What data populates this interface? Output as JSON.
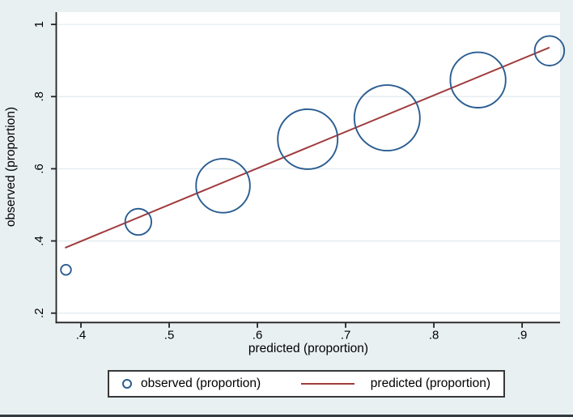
{
  "figure": {
    "background_color": "#e9f0f2",
    "plot_background": "#ffffff",
    "grid_color": "#e4edf0",
    "axis_color": "#232323",
    "text_color": "#000000",
    "navy": "#2a5d91",
    "maroon": "#a03c3e",
    "legend_border_color": "#383838",
    "bottom_border_color": "#333b41"
  },
  "chart_data": {
    "type": "scatter",
    "title": "",
    "xlabel": "predicted (proportion)",
    "ylabel": "observed (proportion)",
    "x_ticks": [
      ".4",
      ".5",
      ".6",
      ".7",
      ".8",
      ".9"
    ],
    "x_tick_values": [
      0.4,
      0.5,
      0.6,
      0.7,
      0.8,
      0.9
    ],
    "y_ticks": [
      ".2",
      ".4",
      ".6",
      ".8",
      "1"
    ],
    "y_tick_values": [
      0.2,
      0.4,
      0.6,
      0.8,
      1.0
    ],
    "xlim": [
      0.372,
      0.943
    ],
    "ylim": [
      0.174,
      1.034
    ],
    "grid": "horizontal",
    "legend_position": "bottom",
    "series": [
      {
        "name": "predicted (proportion)",
        "type": "line",
        "color": "#a03c3e",
        "points": [
          {
            "x": 0.382,
            "y": 0.381
          },
          {
            "x": 0.931,
            "y": 0.936
          }
        ]
      },
      {
        "name": "observed (proportion)",
        "type": "bubble",
        "color": "#2a5d91",
        "points": [
          {
            "x": 0.383,
            "y": 0.32,
            "r": 6.3
          },
          {
            "x": 0.465,
            "y": 0.453,
            "r": 16.2
          },
          {
            "x": 0.561,
            "y": 0.553,
            "r": 33.3
          },
          {
            "x": 0.657,
            "y": 0.682,
            "r": 37.0
          },
          {
            "x": 0.747,
            "y": 0.741,
            "r": 40.5
          },
          {
            "x": 0.85,
            "y": 0.846,
            "r": 34.2
          },
          {
            "x": 0.931,
            "y": 0.927,
            "r": 18.3
          }
        ]
      }
    ],
    "legend": [
      {
        "label": "observed (proportion)",
        "marker": "circle"
      },
      {
        "label": "predicted (proportion)",
        "marker": "line"
      }
    ]
  }
}
